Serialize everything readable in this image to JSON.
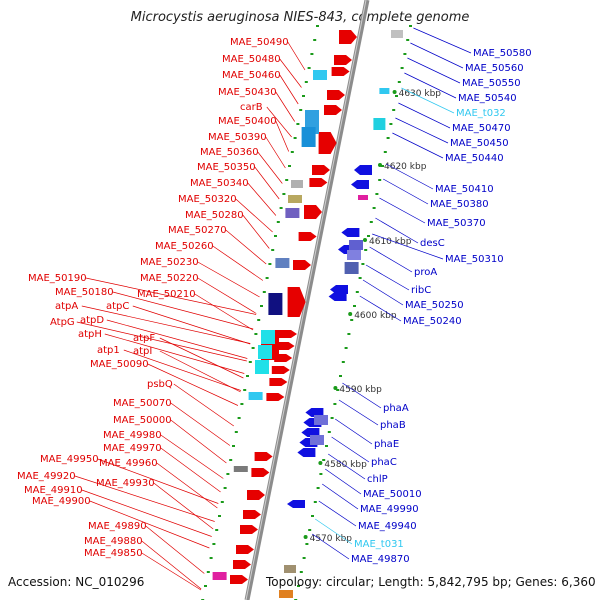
{
  "title": "Microcystis aeruginosa NIES-843, complete genome",
  "footer": {
    "accession": "Accession: NC_010296",
    "topology": "Topology: circular; Length: 5,842,795 bp; Genes: 6,360"
  },
  "colors": {
    "left_label": "#e00000",
    "right_label": "#0000c8",
    "trna_label": "#30c8f0",
    "axis": "#8c8c8c"
  },
  "kbp_ticks": [
    "4630 kbp",
    "4620 kbp",
    "4610 kbp",
    "4600 kbp",
    "4590 kbp",
    "4580 kbp",
    "4570 kbp"
  ],
  "left_labels": [
    "MAE_50490",
    "MAE_50480",
    "MAE_50460",
    "MAE_50430",
    "carB",
    "MAE_50400",
    "MAE_50390",
    "MAE_50360",
    "MAE_50350",
    "MAE_50340",
    "MAE_50320",
    "MAE_50280",
    "MAE_50270",
    "MAE_50260",
    "MAE_50230",
    "MAE_50220",
    "MAE_50210",
    "MAE_50190",
    "MAE_50180",
    "atpA",
    "atpC",
    "atpD",
    "AtpG",
    "atpH",
    "atpF",
    "atp1",
    "atpI",
    "MAE_50090",
    "psbQ",
    "MAE_50070",
    "MAE_50000",
    "MAE_49980",
    "MAE_49970",
    "MAE_49950",
    "MAE_49960",
    "MAE_49920",
    "MAE_49930",
    "MAE_49910",
    "MAE_49900",
    "MAE_49890",
    "MAE_49880",
    "MAE_49850"
  ],
  "right_labels": [
    "MAE_50580",
    "MAE_50560",
    "MAE_50550",
    "MAE_50540",
    "MAE_t032",
    "MAE_50470",
    "MAE_50450",
    "MAE_50440",
    "MAE_50410",
    "MAE_50380",
    "MAE_50370",
    "desC",
    "MAE_50310",
    "proA",
    "ribC",
    "MAE_50250",
    "MAE_50240",
    "phaA",
    "phaB",
    "phaE",
    "phaC",
    "chlP",
    "MAE_50010",
    "MAE_49990",
    "MAE_49940",
    "MAE_t031",
    "MAE_49870"
  ]
}
